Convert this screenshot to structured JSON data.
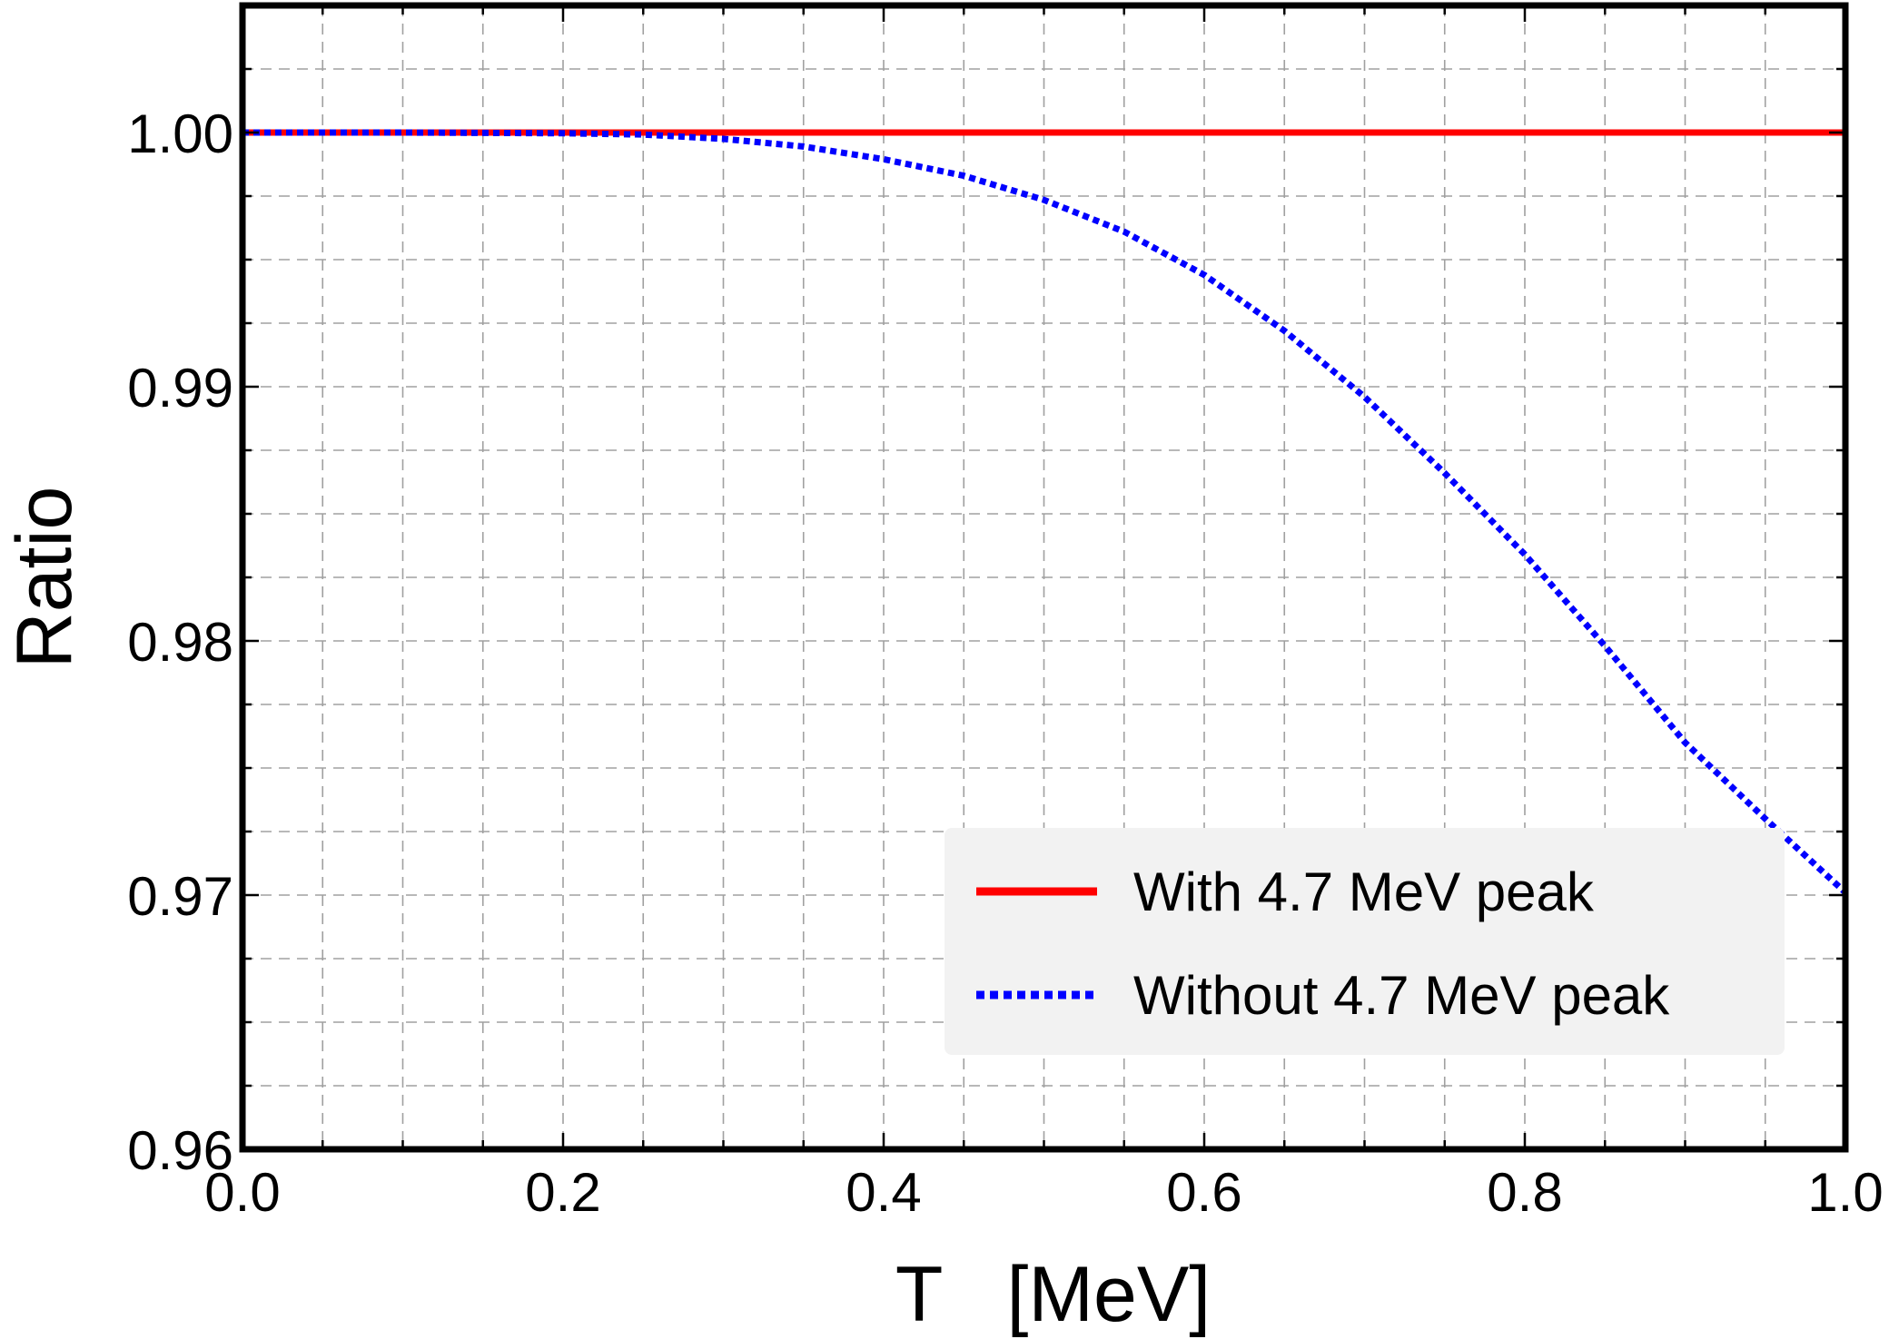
{
  "chart_data": {
    "type": "line",
    "xlabel": "T   [MeV]",
    "ylabel": "Ratio",
    "xlim": [
      0.0,
      1.0
    ],
    "ylim": [
      0.96,
      1.005
    ],
    "x_ticks": [
      "0.0",
      "0.2",
      "0.4",
      "0.6",
      "0.8",
      "1.0"
    ],
    "x_tick_values": [
      0.0,
      0.2,
      0.4,
      0.6,
      0.8,
      1.0
    ],
    "y_ticks": [
      "0.96",
      "0.97",
      "0.98",
      "0.99",
      "1.00"
    ],
    "y_tick_values": [
      0.96,
      0.97,
      0.98,
      0.99,
      1.0
    ],
    "grid": true,
    "legend_position": "bottom-right",
    "series": [
      {
        "name": "With 4.7 MeV peak",
        "color": "#ff0000",
        "style": "solid",
        "x": [
          0.0,
          0.1,
          0.2,
          0.3,
          0.4,
          0.5,
          0.6,
          0.7,
          0.8,
          0.9,
          1.0
        ],
        "y": [
          1.0,
          1.0,
          1.0,
          1.0,
          1.0,
          1.0,
          1.0,
          1.0,
          1.0,
          1.0,
          1.0
        ]
      },
      {
        "name": "Without 4.7 MeV peak",
        "color": "#0000ff",
        "style": "dotted",
        "x": [
          0.0,
          0.1,
          0.2,
          0.25,
          0.3,
          0.35,
          0.4,
          0.45,
          0.5,
          0.55,
          0.6,
          0.65,
          0.7,
          0.75,
          0.8,
          0.85,
          0.9,
          0.95,
          1.0
        ],
        "y": [
          1.0,
          1.0,
          0.99997,
          0.99992,
          0.99975,
          0.99945,
          0.99895,
          0.9983,
          0.99735,
          0.9961,
          0.9944,
          0.9922,
          0.9896,
          0.9866,
          0.9834,
          0.9798,
          0.976,
          0.973,
          0.9701
        ]
      }
    ]
  }
}
